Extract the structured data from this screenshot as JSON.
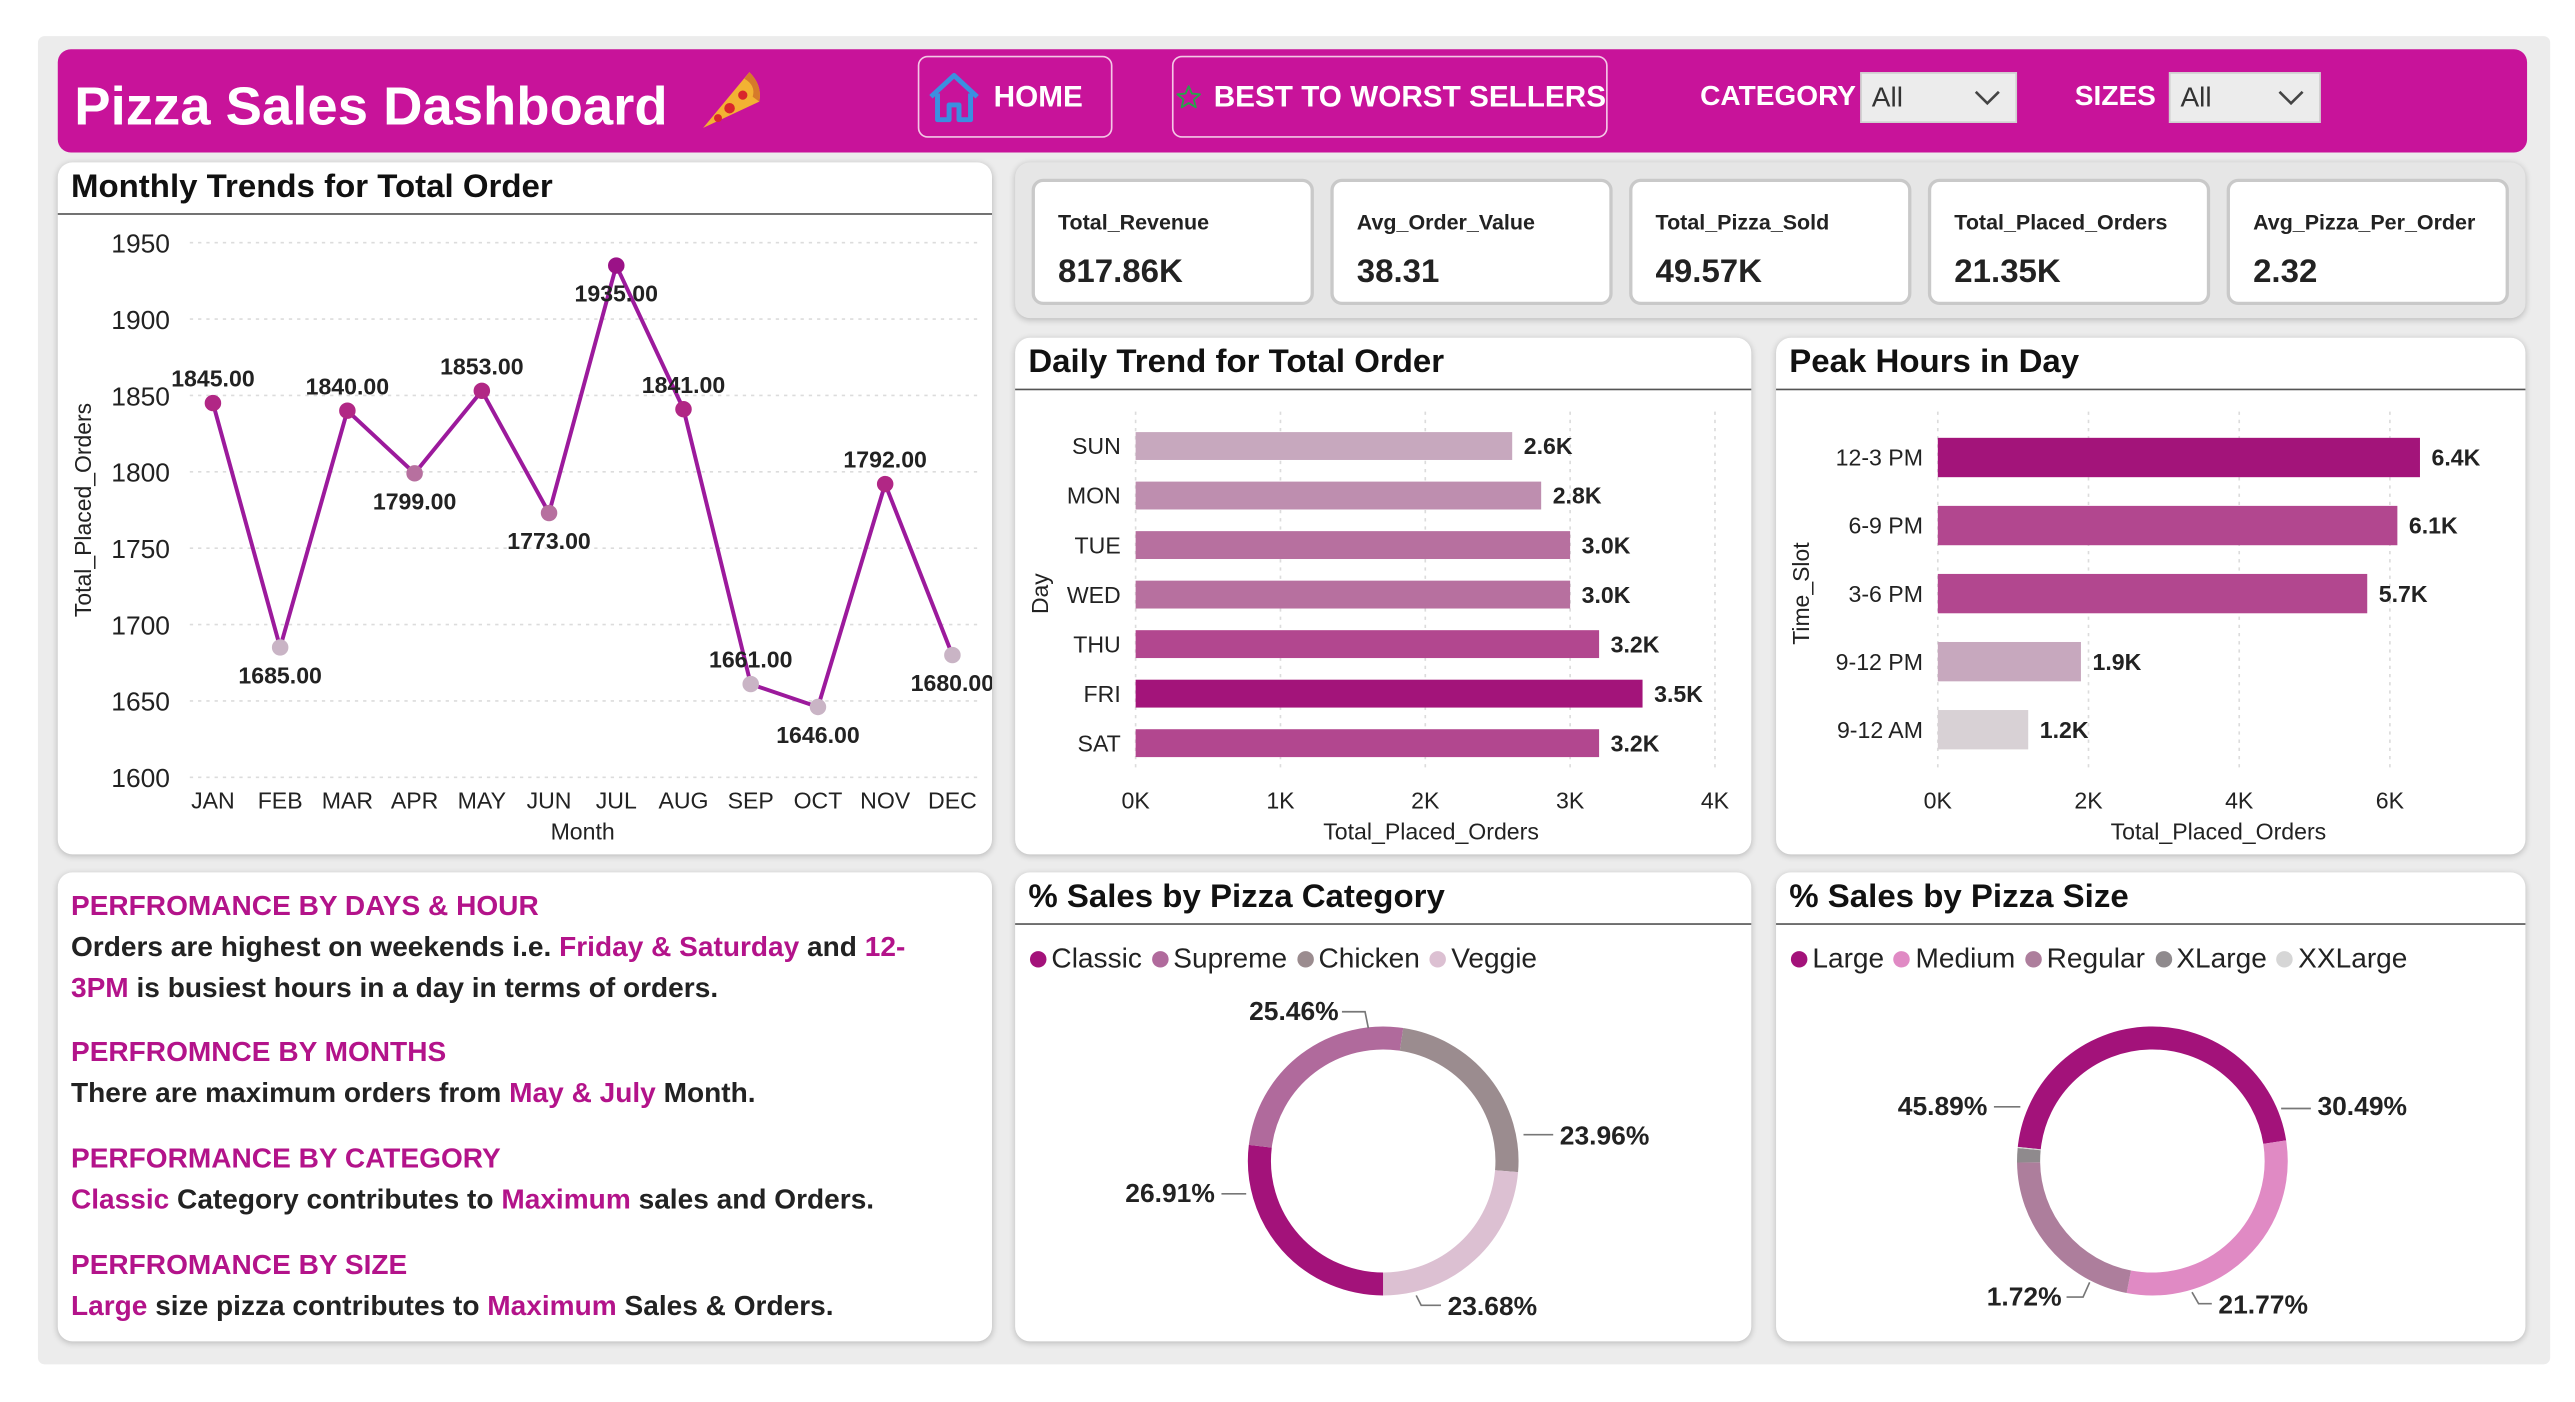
{
  "header": {
    "title": "Pizza Sales Dashboard",
    "home_label": "HOME",
    "sellers_label": "BEST TO WORST SELLERS",
    "category_label": "CATEGORY",
    "category_value": "All",
    "sizes_label": "SIZES",
    "sizes_value": "All"
  },
  "kpis": [
    {
      "label": "Total_Revenue",
      "value": "817.86K"
    },
    {
      "label": "Avg_Order_Value",
      "value": "38.31"
    },
    {
      "label": "Total_Pizza_Sold",
      "value": "49.57K"
    },
    {
      "label": "Total_Placed_Orders",
      "value": "21.35K"
    },
    {
      "label": "Avg_Pizza_Per_Order",
      "value": "2.32"
    }
  ],
  "colors": {
    "accent": "#c8139a",
    "line": "#9c1a9c",
    "bar_dark": "#a3147a",
    "bar_mid": "#b2478f",
    "bar_light": "#c7a8be",
    "bar_gray": "#d8d1d5"
  },
  "chart_data": [
    {
      "type": "line",
      "title": "Monthly Trends for Total Order",
      "xlabel": "Month",
      "ylabel": "Total_Placed_Orders",
      "categories": [
        "JAN",
        "FEB",
        "MAR",
        "APR",
        "MAY",
        "JUN",
        "JUL",
        "AUG",
        "SEP",
        "OCT",
        "NOV",
        "DEC"
      ],
      "values": [
        1845,
        1685,
        1840,
        1799,
        1853,
        1773,
        1935,
        1841,
        1661,
        1646,
        1792,
        1680
      ],
      "data_labels": [
        "1845.00",
        "1685.00",
        "1840.00",
        "1799.00",
        "1853.00",
        "1773.00",
        "1935.00",
        "1841.00",
        "1661.00",
        "1646.00",
        "1792.00",
        "1680.00"
      ],
      "yticks": [
        1950,
        1900,
        1850,
        1800,
        1750,
        1700,
        1650,
        1600
      ],
      "ylim": [
        1600,
        1950
      ]
    },
    {
      "type": "bar",
      "orientation": "horizontal",
      "title": "Daily Trend for Total Order",
      "xlabel": "Total_Placed_Orders",
      "ylabel": "Day",
      "categories": [
        "SUN",
        "MON",
        "TUE",
        "WED",
        "THU",
        "FRI",
        "SAT"
      ],
      "values": [
        2600,
        2800,
        3000,
        3000,
        3200,
        3500,
        3200
      ],
      "data_labels": [
        "2.6K",
        "2.8K",
        "3.0K",
        "3.0K",
        "3.2K",
        "3.5K",
        "3.2K"
      ],
      "xticks": [
        "0K",
        "1K",
        "2K",
        "3K",
        "4K"
      ],
      "xlim": [
        0,
        4000
      ]
    },
    {
      "type": "bar",
      "orientation": "horizontal",
      "title": "Peak Hours in Day",
      "xlabel": "Total_Placed_Orders",
      "ylabel": "Time_Slot",
      "categories": [
        "12-3 PM",
        "6-9 PM",
        "3-6 PM",
        "9-12 PM",
        "9-12 AM"
      ],
      "values": [
        6400,
        6100,
        5700,
        1900,
        1200
      ],
      "data_labels": [
        "6.4K",
        "6.1K",
        "5.7K",
        "1.9K",
        "1.2K"
      ],
      "xticks": [
        "0K",
        "2K",
        "4K",
        "6K"
      ],
      "xlim": [
        0,
        7000
      ]
    },
    {
      "type": "pie",
      "subtype": "donut",
      "title": "% Sales by Pizza Category",
      "legend": "top-left",
      "categories": [
        "Classic",
        "Supreme",
        "Chicken",
        "Veggie"
      ],
      "values": [
        26.91,
        25.46,
        23.96,
        23.68
      ],
      "data_labels": [
        "26.91%",
        "25.46%",
        "23.96%",
        "23.68%"
      ],
      "colors": [
        "#a3127a",
        "#b06a9c",
        "#9b8c8f",
        "#dcc0d2"
      ]
    },
    {
      "type": "pie",
      "subtype": "donut",
      "title": "% Sales by Pizza Size",
      "legend": "top-left",
      "categories": [
        "Large",
        "Medium",
        "Regular",
        "XLarge",
        "XXLarge"
      ],
      "values": [
        45.89,
        30.49,
        21.77,
        1.72,
        0.13
      ],
      "data_labels": [
        "45.89%",
        "30.49%",
        "21.77%",
        "1.72%",
        ""
      ],
      "colors": [
        "#a3127a",
        "#e08ac4",
        "#ad7e9c",
        "#8f8a8d",
        "#d6d6d6"
      ]
    }
  ],
  "insights": {
    "days_heading": "PERFROMANCE BY DAYS & HOUR",
    "days_t1": "Orders are highest on weekends i.e. ",
    "days_h1": "Friday & Saturday",
    "days_t2": " and ",
    "days_h2": "12-3PM",
    "days_t3": " is busiest hours in a day in terms of orders.",
    "months_heading": "PERFROMNCE BY MONTHS",
    "months_t1": "There are maximum orders from ",
    "months_h1": "May & July",
    "months_t2": " Month.",
    "category_heading": "PERFORMANCE BY CATEGORY",
    "category_h1": "Classic",
    "category_t1": " Category contributes to ",
    "category_h2": "Maximum",
    "category_t2": " sales and Orders.",
    "size_heading": "PERFROMANCE BY SIZE",
    "size_h1": "Large",
    "size_t1": " size pizza contributes to ",
    "size_h2": "Maximum",
    "size_t2": " Sales & Orders."
  }
}
